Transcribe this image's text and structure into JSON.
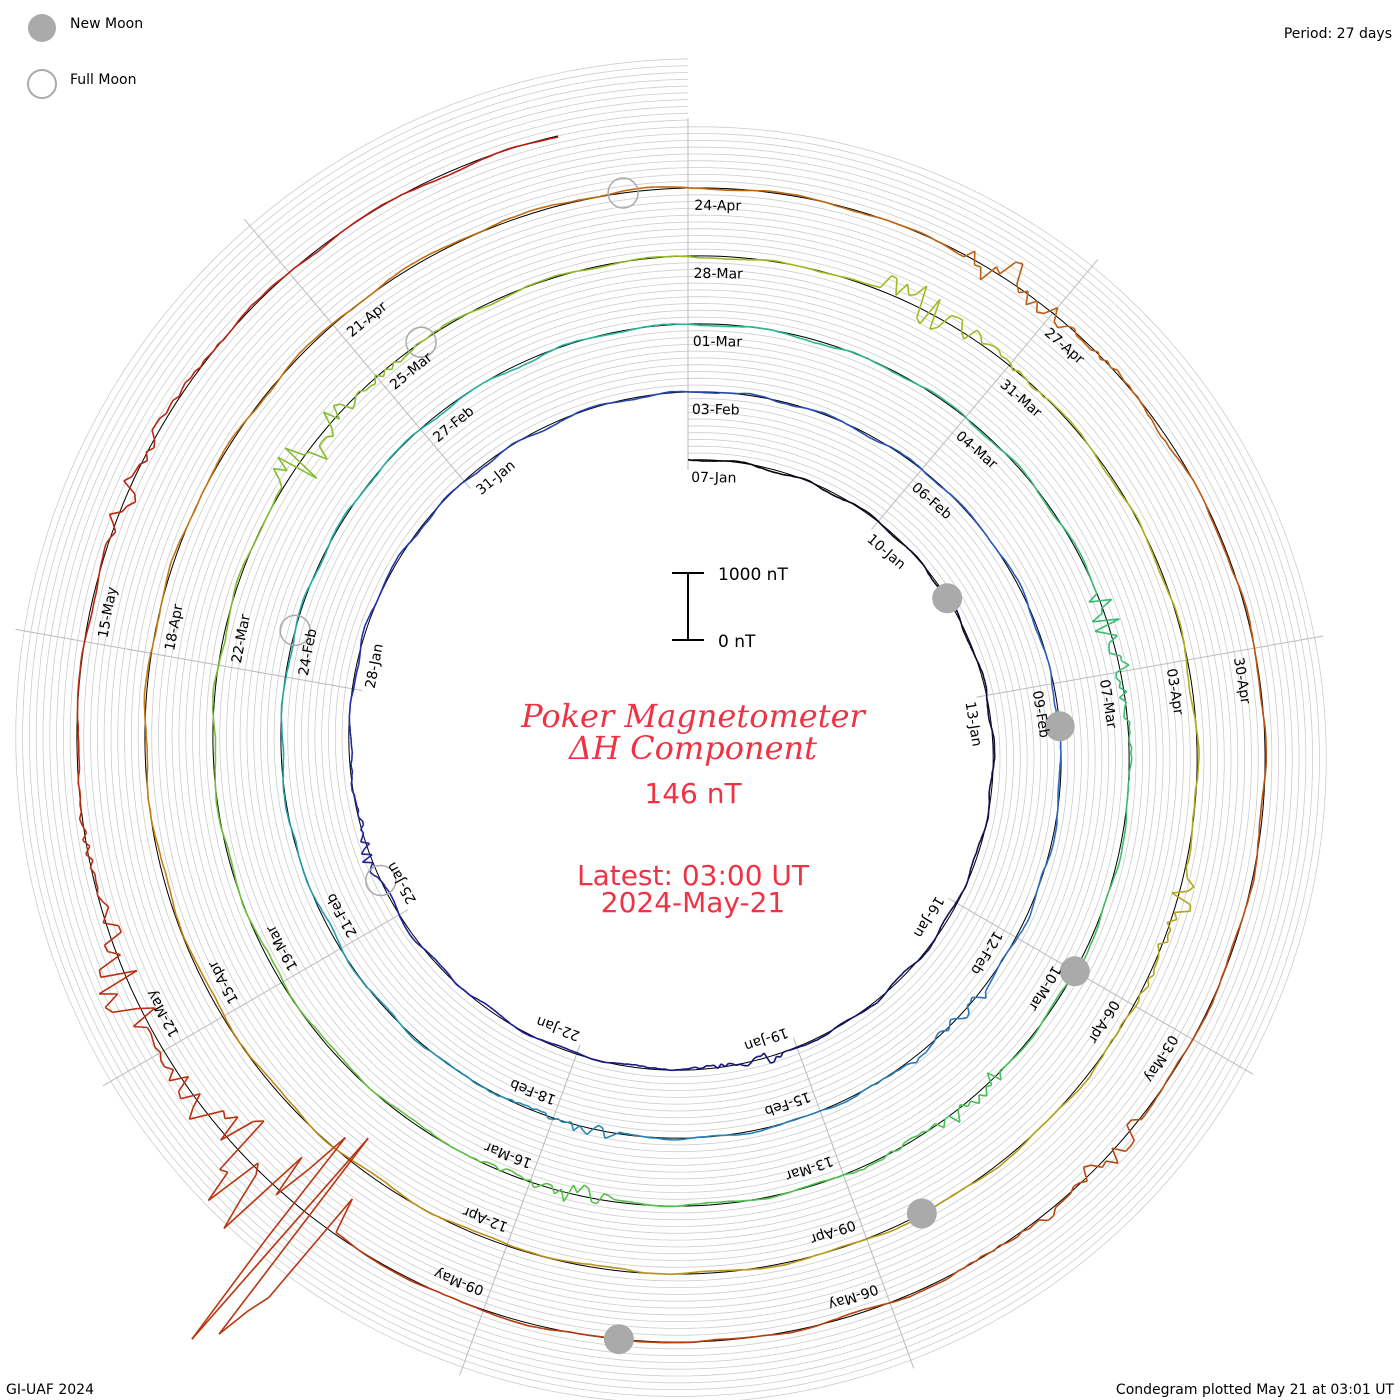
{
  "legend": {
    "new_moon_label": "New Moon",
    "full_moon_label": "Full Moon",
    "new_moon_color": "#aaaaaa",
    "full_moon_color": "#aaaaaa"
  },
  "period_label": "Period: 27 days",
  "footer_left": "GI-UAF 2024",
  "footer_right": "Condegram plotted May 21 at 03:01 UT",
  "title": {
    "line1": "Poker Magnetometer",
    "line2": "ΔH Component",
    "value": "146 nT",
    "latest_line1": "Latest: 03:00 UT",
    "latest_line2": "2024-May-21",
    "color": "#ee3344"
  },
  "scale_bar": {
    "top_label": "1000 nT",
    "bottom_label": "0 nT"
  },
  "chart_data": {
    "type": "line",
    "title": "Poker Magnetometer ΔH Component",
    "period_days": 27,
    "start_date": "07-Jan",
    "end_date": "21-May",
    "latest_value_nT": 146,
    "scale_nT": [
      0,
      1000
    ],
    "date_labels": [
      "07-Jan",
      "10-Jan",
      "13-Jan",
      "16-Jan",
      "19-Jan",
      "22-Jan",
      "25-Jan",
      "28-Jan",
      "31-Jan",
      "03-Feb",
      "06-Feb",
      "09-Feb",
      "12-Feb",
      "15-Feb",
      "18-Feb",
      "21-Feb",
      "24-Feb",
      "27-Feb",
      "01-Mar",
      "04-Mar",
      "07-Mar",
      "10-Mar",
      "13-Mar",
      "16-Mar",
      "19-Mar",
      "22-Mar",
      "25-Mar",
      "28-Mar",
      "31-Mar",
      "03-Apr",
      "06-Apr",
      "09-Apr",
      "12-Apr",
      "15-Apr",
      "18-Apr",
      "21-Apr",
      "24-Apr",
      "27-Apr",
      "30-Apr",
      "03-May",
      "06-May",
      "09-May",
      "12-May",
      "15-May"
    ],
    "new_moon_days": [
      4.5,
      33.5,
      63.0,
      92.5,
      122.0
    ],
    "full_moon_days": [
      18.5,
      48.5,
      78.5,
      107.5
    ],
    "disturbances": [
      {
        "day": 12.5,
        "amp": 120
      },
      {
        "day": 18.8,
        "amp": 110
      },
      {
        "day": 37.0,
        "amp": 160
      },
      {
        "day": 41.5,
        "amp": 120
      },
      {
        "day": 59.5,
        "amp": 300
      },
      {
        "day": 64.5,
        "amp": 220
      },
      {
        "day": 68.5,
        "amp": 200
      },
      {
        "day": 77.0,
        "amp": 500
      },
      {
        "day": 83.0,
        "amp": 400
      },
      {
        "day": 89.0,
        "amp": 250
      },
      {
        "day": 110.5,
        "amp": 350
      },
      {
        "day": 118.0,
        "amp": 250
      },
      {
        "day": 124.5,
        "amp": 2500
      },
      {
        "day": 126.5,
        "amp": 500
      },
      {
        "day": 130.0,
        "amp": 200
      }
    ],
    "series_colors": [
      "#000000",
      "#1b1b9e",
      "#2a64c0",
      "#21b0a4",
      "#4dc34a",
      "#a8b822",
      "#c77f12",
      "#b84a10",
      "#b81c10"
    ]
  }
}
